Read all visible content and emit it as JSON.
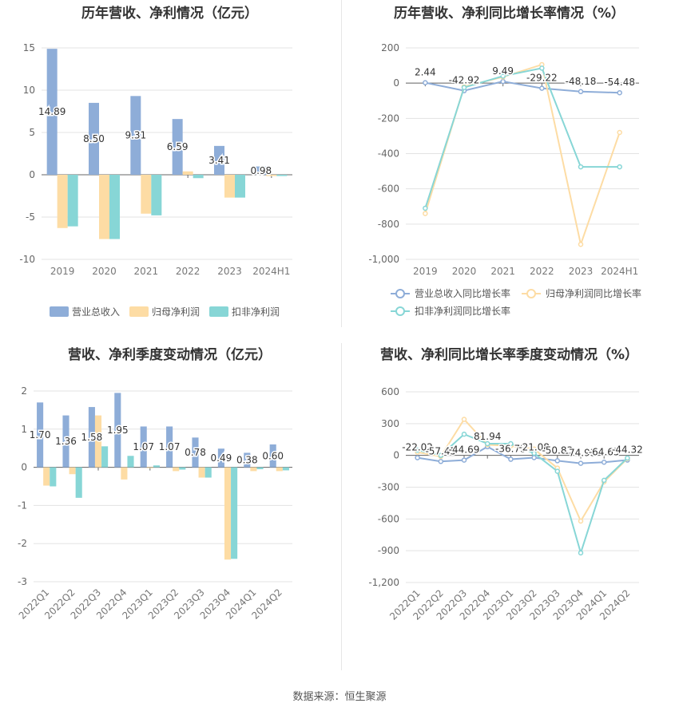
{
  "source_text": "数据来源：恒生聚源",
  "chart_data": [
    {
      "id": "annual_amounts",
      "type": "bar",
      "title": "历年营收、净利情况（亿元）",
      "categories": [
        "2019",
        "2020",
        "2021",
        "2022",
        "2023",
        "2024H1"
      ],
      "ylim": [
        -10,
        15
      ],
      "yticks": [
        15,
        10,
        5,
        0,
        -5,
        -10
      ],
      "ytick_labels": [
        "15",
        "10",
        "5",
        "0",
        "-5",
        "-10"
      ],
      "grid": true,
      "legend_position": "bottom",
      "label_series": 0,
      "value_labels": [
        "14.89",
        "8.50",
        "9.31",
        "6.59",
        "3.41",
        "0.98"
      ],
      "series": [
        {
          "name": "营业总收入",
          "color": "#8eadd8",
          "values": [
            14.89,
            8.5,
            9.31,
            6.59,
            3.41,
            0.98
          ]
        },
        {
          "name": "归母净利润",
          "color": "#fddca4",
          "values": [
            -6.3,
            -7.6,
            -4.6,
            0.4,
            -2.7,
            -0.15
          ]
        },
        {
          "name": "扣非净利润",
          "color": "#87d6d6",
          "values": [
            -6.1,
            -7.6,
            -4.8,
            -0.4,
            -2.7,
            -0.15
          ]
        }
      ]
    },
    {
      "id": "annual_growth",
      "type": "line",
      "title": "历年营收、净利同比增长率情况（%）",
      "categories": [
        "2019",
        "2020",
        "2021",
        "2022",
        "2023",
        "2024H1"
      ],
      "ylim": [
        -1000,
        200
      ],
      "yticks": [
        200,
        0,
        -200,
        -400,
        -600,
        -800,
        -1000
      ],
      "ytick_labels": [
        "200",
        "0",
        "-200",
        "-400",
        "-600",
        "-800",
        "-1,000"
      ],
      "grid": true,
      "legend_position": "bottom",
      "label_series": 0,
      "value_labels": [
        "2.44",
        "-42.92",
        "9.49",
        "-29.22",
        "-48.18",
        "-54.48"
      ],
      "series": [
        {
          "name": "营业总收入同比增长率",
          "color": "#8eadd8",
          "values": [
            2.44,
            -42.92,
            9.49,
            -29.22,
            -48.18,
            -54.48
          ]
        },
        {
          "name": "归母净利润同比增长率",
          "color": "#fddca4",
          "values": [
            -740,
            -20,
            35,
            105,
            -915,
            -280
          ]
        },
        {
          "name": "扣非净利润同比增长率",
          "color": "#87d6d6",
          "values": [
            -710,
            -25,
            40,
            85,
            -475,
            -475
          ]
        }
      ]
    },
    {
      "id": "quarterly_amounts",
      "type": "bar",
      "title": "营收、净利季度变动情况（亿元）",
      "categories": [
        "2022Q1",
        "2022Q2",
        "2022Q3",
        "2022Q4",
        "2023Q1",
        "2023Q2",
        "2023Q3",
        "2023Q4",
        "2024Q1",
        "2024Q2"
      ],
      "ylim": [
        -3,
        2
      ],
      "yticks": [
        2,
        1,
        0,
        -1,
        -2,
        -3
      ],
      "ytick_labels": [
        "2",
        "1",
        "0",
        "-1",
        "-2",
        "-3"
      ],
      "grid": true,
      "legend_position": "bottom",
      "label_series": 0,
      "value_labels": [
        "1.70",
        "1.36",
        "1.58",
        "1.95",
        "1.07",
        "1.07",
        "0.78",
        "0.49",
        "0.38",
        "0.60"
      ],
      "series": [
        {
          "name": "营业总收入",
          "color": "#8eadd8",
          "values": [
            1.7,
            1.36,
            1.58,
            1.95,
            1.07,
            1.07,
            0.78,
            0.49,
            0.38,
            0.6
          ]
        },
        {
          "name": "归母净利润",
          "color": "#fddca4",
          "values": [
            -0.48,
            -0.18,
            1.36,
            -0.32,
            -0.02,
            -0.1,
            -0.27,
            -2.42,
            -0.1,
            -0.1
          ]
        },
        {
          "name": "扣非净利润",
          "color": "#87d6d6",
          "values": [
            -0.5,
            -0.8,
            0.55,
            0.3,
            0.05,
            -0.06,
            -0.27,
            -2.4,
            -0.05,
            -0.08
          ]
        }
      ]
    },
    {
      "id": "quarterly_growth",
      "type": "line",
      "title": "营收、净利同比增长率季度变动情况（%）",
      "categories": [
        "2022Q1",
        "2022Q2",
        "2022Q3",
        "2022Q4",
        "2023Q1",
        "2023Q2",
        "2023Q3",
        "2023Q4",
        "2024Q1",
        "2024Q2"
      ],
      "ylim": [
        -1200,
        600
      ],
      "yticks": [
        600,
        300,
        0,
        -300,
        -600,
        -900,
        -1200
      ],
      "ytick_labels": [
        "600",
        "300",
        "0",
        "-300",
        "-600",
        "-900",
        "-1,200"
      ],
      "grid": true,
      "legend_position": "bottom",
      "label_series": 0,
      "value_labels": [
        "-22.02",
        "-57.45",
        "-44.69",
        "81.94",
        "-36.75",
        "-21.08",
        "-50.83",
        "-74.93",
        "-64.65",
        "-44.32"
      ],
      "series": [
        {
          "name": "营业总收入同比增长率",
          "color": "#8eadd8",
          "values": [
            -22.02,
            -57.45,
            -44.69,
            81.94,
            -36.75,
            -21.08,
            -50.83,
            -74.93,
            -64.65,
            -44.32
          ]
        },
        {
          "name": "归母净利润同比增长率",
          "color": "#fddca4",
          "values": [
            30,
            -10,
            340,
            100,
            90,
            60,
            -120,
            -620,
            -250,
            -30
          ]
        },
        {
          "name": "扣非净利润同比增长率",
          "color": "#87d6d6",
          "values": [
            50,
            0,
            200,
            110,
            110,
            20,
            -150,
            -920,
            -235,
            -25
          ]
        }
      ]
    }
  ]
}
